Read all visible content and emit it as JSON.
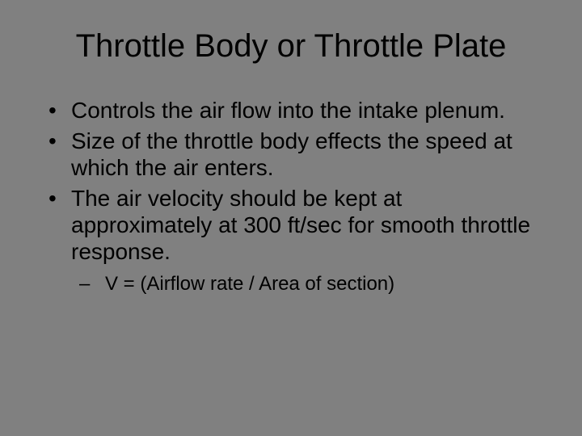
{
  "slide": {
    "background_color": "#808080",
    "text_color": "#000000",
    "title": "Throttle Body or Throttle Plate",
    "title_fontsize": 40,
    "body_fontsize": 28,
    "sub_fontsize": 24,
    "bullets": [
      {
        "level": 1,
        "text": "Controls the air flow into the intake plenum."
      },
      {
        "level": 1,
        "text": "Size of the throttle body effects the speed at which the air enters."
      },
      {
        "level": 1,
        "text": "The air velocity should be kept at approximately at 300 ft/sec for smooth throttle response."
      },
      {
        "level": 2,
        "text": "V = (Airflow rate / Area of section)"
      }
    ]
  }
}
